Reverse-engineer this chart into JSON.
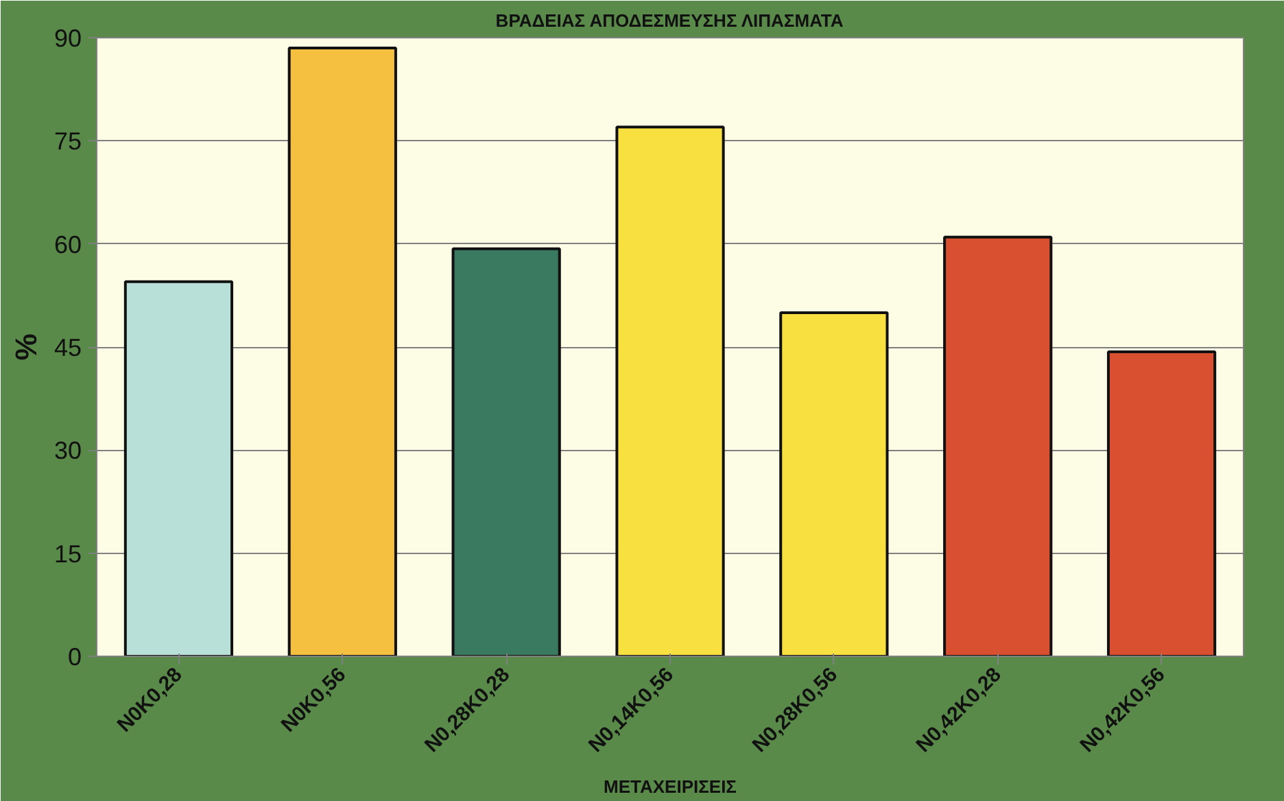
{
  "chart_data": {
    "type": "bar",
    "title": "ΒΡΑΔΕΙΑΣ ΑΠΟΔΕΣΜΕΥΣΗΣ ΛΙΠΑΣΜΑΤΑ",
    "xlabel": "ΜΕΤΑΧΕΙΡΙΣΕΙΣ",
    "ylabel": "%",
    "categories": [
      "N0K0,28",
      "N0K0,56",
      "N0,28K0,28",
      "N0,14K0,56",
      "N0,28K0,56",
      "N0,42K0,28",
      "N0,42K0,56"
    ],
    "values": [
      54.5,
      88.5,
      59.3,
      77,
      50,
      61,
      44.3
    ],
    "colors": [
      "#b8e0d8",
      "#f5c040",
      "#3a7a60",
      "#f8e040",
      "#f8e040",
      "#d85030",
      "#d85030"
    ],
    "ylim": [
      0,
      90
    ],
    "yticks": [
      0,
      15,
      30,
      45,
      60,
      75,
      90
    ],
    "grid": "y"
  }
}
